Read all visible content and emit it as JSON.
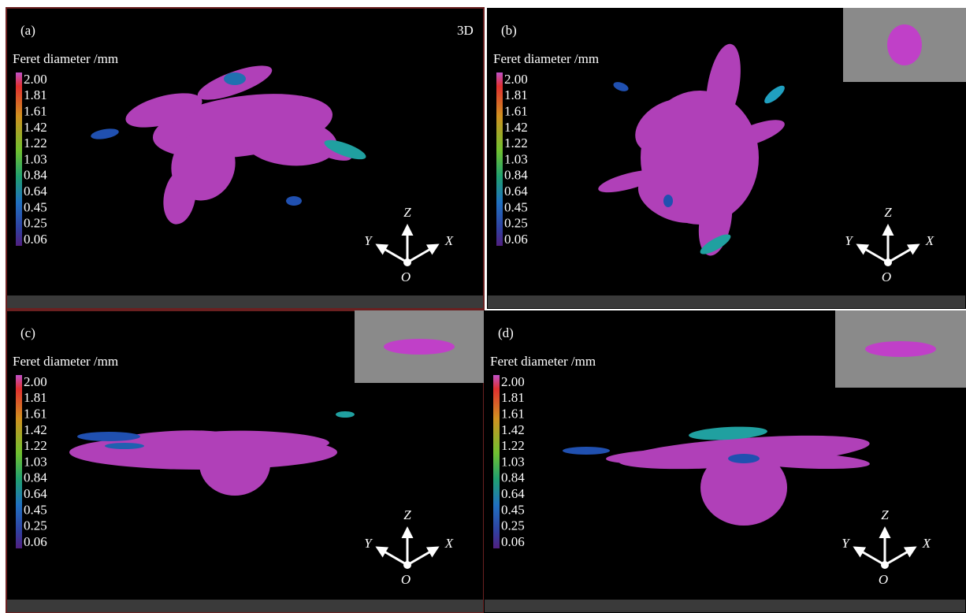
{
  "panels": [
    {
      "label": "(a)",
      "tag": "3D",
      "legend_title": "Feret diameter /mm",
      "scale": [
        "2.00",
        "1.81",
        "1.61",
        "1.42",
        "1.22",
        "1.03",
        "0.84",
        "0.64",
        "0.45",
        "0.25",
        "0.06"
      ],
      "axes": {
        "z": "Z",
        "y": "Y",
        "x": "X",
        "o": "O"
      }
    },
    {
      "label": "(b)",
      "legend_title": "Feret diameter /mm",
      "scale": [
        "2.00",
        "1.81",
        "1.61",
        "1.42",
        "1.22",
        "1.03",
        "0.84",
        "0.64",
        "0.45",
        "0.25",
        "0.06"
      ],
      "axes": {
        "z": "Z",
        "y": "Y",
        "x": "X",
        "o": "O"
      }
    },
    {
      "label": "(c)",
      "legend_title": "Feret diameter /mm",
      "scale": [
        "2.00",
        "1.81",
        "1.61",
        "1.42",
        "1.22",
        "1.03",
        "0.84",
        "0.64",
        "0.45",
        "0.25",
        "0.06"
      ],
      "axes": {
        "z": "Z",
        "y": "Y",
        "x": "X",
        "o": "O"
      }
    },
    {
      "label": "(d)",
      "legend_title": "Feret diameter /mm",
      "scale": [
        "2.00",
        "1.81",
        "1.61",
        "1.42",
        "1.22",
        "1.03",
        "0.84",
        "0.64",
        "0.45",
        "0.25",
        "0.06"
      ],
      "axes": {
        "z": "Z",
        "y": "Y",
        "x": "X",
        "o": "O"
      }
    }
  ]
}
